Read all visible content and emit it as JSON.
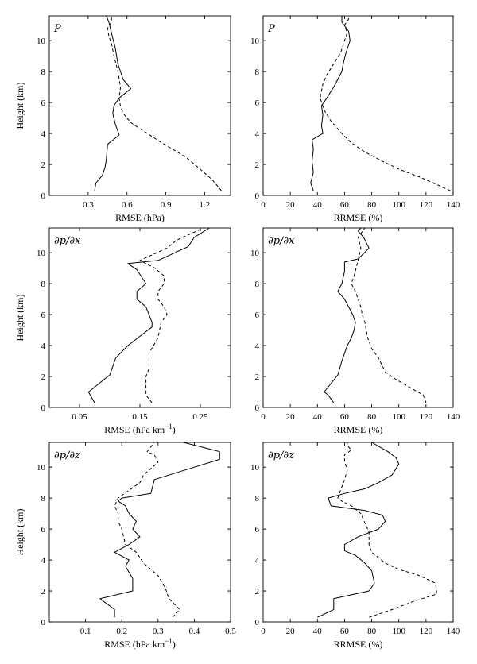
{
  "chart_data": [
    {
      "type": "line",
      "title": "P",
      "xlabel": "RMSE (hPa)",
      "ylabel": "Height (km)",
      "xlim": [
        0,
        1.4
      ],
      "ylim": [
        0,
        11.6
      ],
      "xticks": [
        0.3,
        0.6,
        0.9,
        1.2
      ],
      "xtick_labels": [
        "0.3",
        "0.6",
        "0.9",
        "1.2"
      ],
      "yticks": [
        0,
        2,
        4,
        6,
        8,
        10
      ],
      "ytick_labels": [
        "0",
        "2",
        "4",
        "6",
        "8",
        "10"
      ],
      "grid": false,
      "series": [
        {
          "style": "solid",
          "x": [
            0.35,
            0.36,
            0.41,
            0.43,
            0.44,
            0.45,
            0.54,
            0.51,
            0.49,
            0.5,
            0.54,
            0.6,
            0.63,
            0.57,
            0.53,
            0.51,
            0.48,
            0.46,
            0.44
          ],
          "y": [
            0.3,
            0.8,
            1.3,
            1.8,
            2.3,
            3.3,
            3.9,
            4.6,
            5.3,
            5.8,
            6.3,
            6.7,
            6.9,
            7.5,
            8.5,
            9.5,
            10.5,
            11.2,
            11.6
          ]
        },
        {
          "style": "dashed",
          "x": [
            1.33,
            1.26,
            1.15,
            1.05,
            0.95,
            0.85,
            0.72,
            0.63,
            0.58,
            0.55,
            0.54,
            0.55,
            0.53,
            0.5,
            0.48,
            0.46,
            0.45,
            0.48,
            0.48
          ],
          "y": [
            0.3,
            1.0,
            1.8,
            2.5,
            3.0,
            3.5,
            4.2,
            4.7,
            5.2,
            5.7,
            6.3,
            7.0,
            8.0,
            9.0,
            9.8,
            10.3,
            10.8,
            11.2,
            11.6
          ]
        }
      ]
    },
    {
      "type": "line",
      "title": "P",
      "xlabel": "RRMSE (%)",
      "ylabel": "",
      "xlim": [
        0,
        140
      ],
      "ylim": [
        0,
        11.6
      ],
      "xticks": [
        0,
        20,
        40,
        60,
        80,
        100,
        120,
        140
      ],
      "xtick_labels": [
        "0",
        "20",
        "40",
        "60",
        "80",
        "100",
        "120",
        "140"
      ],
      "yticks": [
        0,
        2,
        4,
        6,
        8,
        10
      ],
      "ytick_labels": [
        "0",
        "2",
        "4",
        "6",
        "8",
        "10"
      ],
      "grid": false,
      "series": [
        {
          "style": "solid",
          "x": [
            37,
            35,
            37,
            36,
            37,
            36,
            44,
            43,
            44,
            43,
            47,
            52,
            55,
            58,
            59,
            61,
            64,
            63,
            58,
            58
          ],
          "y": [
            0.3,
            0.8,
            1.5,
            2.2,
            3.0,
            3.6,
            4.0,
            4.5,
            5.2,
            5.8,
            6.3,
            7.0,
            7.5,
            8.0,
            8.5,
            9.2,
            10.0,
            10.6,
            11.2,
            11.6
          ]
        },
        {
          "style": "dashed",
          "x": [
            138,
            128,
            115,
            100,
            88,
            75,
            65,
            58,
            50,
            45,
            42,
            44,
            47,
            52,
            57,
            60,
            62,
            60,
            63,
            62
          ],
          "y": [
            0.3,
            0.7,
            1.2,
            1.7,
            2.2,
            2.8,
            3.4,
            4.0,
            4.8,
            5.5,
            6.3,
            7.2,
            7.8,
            8.5,
            9.2,
            10.0,
            10.5,
            11.0,
            11.4,
            11.6
          ]
        }
      ]
    },
    {
      "type": "line",
      "title": "∂p/∂x",
      "xlabel": "RMSE (hPa km",
      "xlabel_sup": "−1",
      "xlabel_end": ")",
      "ylabel": "Height (km)",
      "xlim": [
        0,
        0.3
      ],
      "ylim": [
        0,
        11.6
      ],
      "xticks": [
        0.05,
        0.15,
        0.25
      ],
      "xtick_labels": [
        "0.05",
        "0.15",
        "0.25"
      ],
      "yticks": [
        0,
        2,
        4,
        6,
        8,
        10
      ],
      "ytick_labels": [
        "0",
        "2",
        "4",
        "6",
        "8",
        "10"
      ],
      "grid": false,
      "series": [
        {
          "style": "solid",
          "x": [
            0.075,
            0.065,
            0.1,
            0.11,
            0.13,
            0.15,
            0.17,
            0.17,
            0.16,
            0.145,
            0.145,
            0.16,
            0.145,
            0.13,
            0.18,
            0.23,
            0.24,
            0.265
          ],
          "y": [
            0.3,
            1.0,
            2.1,
            3.2,
            4.0,
            4.6,
            5.2,
            5.5,
            6.5,
            7.0,
            7.5,
            8.0,
            8.9,
            9.3,
            9.5,
            10.4,
            11.0,
            11.6
          ]
        },
        {
          "style": "dashed",
          "x": [
            0.17,
            0.16,
            0.16,
            0.165,
            0.165,
            0.18,
            0.185,
            0.195,
            0.19,
            0.18,
            0.18,
            0.19,
            0.19,
            0.175,
            0.15,
            0.195,
            0.21,
            0.255
          ],
          "y": [
            0.3,
            0.8,
            2.0,
            2.5,
            3.5,
            4.5,
            5.5,
            6.0,
            6.5,
            7.0,
            7.5,
            8.0,
            8.5,
            9.0,
            9.5,
            10.3,
            10.8,
            11.6
          ]
        }
      ]
    },
    {
      "type": "line",
      "title": "∂p/∂x",
      "xlabel": "RRMSE (%)",
      "ylabel": "",
      "xlim": [
        0,
        140
      ],
      "ylim": [
        0,
        11.6
      ],
      "xticks": [
        0,
        20,
        40,
        60,
        80,
        100,
        120,
        140
      ],
      "xtick_labels": [
        "0",
        "20",
        "40",
        "60",
        "80",
        "100",
        "120",
        "140"
      ],
      "yticks": [
        0,
        2,
        4,
        6,
        8,
        10
      ],
      "ytick_labels": [
        "0",
        "2",
        "4",
        "6",
        "8",
        "10"
      ],
      "grid": false,
      "series": [
        {
          "style": "solid",
          "x": [
            52,
            48,
            45,
            55,
            58,
            62,
            65,
            67,
            68,
            66,
            60,
            55,
            58,
            60,
            60,
            70,
            78,
            74,
            70,
            72
          ],
          "y": [
            0.3,
            0.8,
            1.0,
            2.1,
            3.0,
            4.0,
            4.5,
            5.0,
            5.5,
            6.0,
            7.0,
            7.5,
            8.0,
            8.8,
            9.4,
            9.6,
            10.3,
            11.0,
            11.4,
            11.6
          ]
        },
        {
          "style": "dashed",
          "x": [
            120,
            118,
            108,
            98,
            90,
            85,
            80,
            77,
            76,
            75,
            73,
            72,
            70,
            68,
            65,
            67,
            70,
            72,
            70,
            75
          ],
          "y": [
            0.3,
            0.8,
            1.3,
            1.8,
            2.3,
            3.2,
            3.8,
            4.5,
            5.0,
            5.5,
            6.0,
            6.5,
            7.0,
            7.5,
            8.0,
            8.5,
            9.5,
            10.3,
            11.0,
            11.6
          ]
        }
      ]
    },
    {
      "type": "line",
      "title": "∂p/∂z",
      "xlabel": "RMSE (hPa km",
      "xlabel_sup": "−1",
      "xlabel_end": ")",
      "ylabel": "Height (km)",
      "xlim": [
        0,
        0.5
      ],
      "ylim": [
        0,
        11.6
      ],
      "xticks": [
        0.1,
        0.2,
        0.3,
        0.4,
        0.5
      ],
      "xtick_labels": [
        "0.1",
        "0.2",
        "0.3",
        "0.4",
        "0.5"
      ],
      "yticks": [
        0,
        2,
        4,
        6,
        8,
        10
      ],
      "ytick_labels": [
        "0",
        "2",
        "4",
        "6",
        "8",
        "10"
      ],
      "grid": false,
      "series": [
        {
          "style": "solid",
          "x": [
            0.18,
            0.18,
            0.14,
            0.23,
            0.23,
            0.21,
            0.22,
            0.18,
            0.22,
            0.25,
            0.23,
            0.24,
            0.22,
            0.21,
            0.19,
            0.2,
            0.28,
            0.29,
            0.4,
            0.47,
            0.47,
            0.42,
            0.37
          ],
          "y": [
            0.3,
            0.8,
            1.5,
            2.0,
            2.8,
            3.6,
            4.0,
            4.5,
            5.0,
            5.5,
            6.0,
            6.5,
            7.0,
            7.5,
            7.8,
            8.0,
            8.3,
            9.2,
            10.0,
            10.5,
            11.0,
            11.3,
            11.6
          ]
        },
        {
          "style": "dashed",
          "x": [
            0.34,
            0.36,
            0.33,
            0.32,
            0.3,
            0.26,
            0.24,
            0.21,
            0.2,
            0.19,
            0.19,
            0.18,
            0.19,
            0.22,
            0.25,
            0.26,
            0.3,
            0.29,
            0.27,
            0.29
          ],
          "y": [
            0.3,
            0.8,
            1.5,
            2.2,
            3.0,
            3.8,
            4.5,
            5.0,
            6.0,
            6.5,
            7.0,
            7.5,
            8.0,
            8.5,
            9.0,
            9.5,
            10.3,
            10.8,
            11.0,
            11.6
          ]
        }
      ]
    },
    {
      "type": "line",
      "title": "∂p/∂z",
      "xlabel": "RRMSE (%)",
      "ylabel": "",
      "xlim": [
        0,
        140
      ],
      "ylim": [
        0,
        11.6
      ],
      "xticks": [
        0,
        20,
        40,
        60,
        80,
        100,
        120,
        140
      ],
      "xtick_labels": [
        "0",
        "20",
        "40",
        "60",
        "80",
        "100",
        "120",
        "140"
      ],
      "yticks": [
        0,
        2,
        4,
        6,
        8,
        10
      ],
      "ytick_labels": [
        "0",
        "2",
        "4",
        "6",
        "8",
        "10"
      ],
      "grid": false,
      "series": [
        {
          "style": "solid",
          "x": [
            40,
            52,
            52,
            78,
            82,
            80,
            75,
            68,
            60,
            60,
            70,
            85,
            90,
            88,
            75,
            50,
            48,
            60,
            75,
            85,
            95,
            100,
            98,
            92,
            80
          ],
          "y": [
            0.3,
            0.8,
            1.5,
            2.0,
            2.5,
            3.3,
            3.8,
            4.3,
            4.6,
            5.0,
            5.5,
            6.0,
            6.5,
            6.9,
            7.2,
            7.5,
            8.0,
            8.3,
            8.6,
            9.0,
            9.5,
            10.2,
            10.6,
            11.0,
            11.6
          ]
        },
        {
          "style": "dashed",
          "x": [
            78,
            95,
            110,
            128,
            127,
            115,
            100,
            90,
            80,
            78,
            78,
            75,
            72,
            65,
            58,
            55,
            57,
            60,
            62,
            60,
            60,
            65,
            62,
            62
          ],
          "y": [
            0.3,
            0.8,
            1.3,
            1.8,
            2.5,
            3.0,
            3.4,
            3.8,
            4.5,
            5.0,
            5.8,
            6.4,
            7.0,
            7.5,
            7.8,
            8.0,
            8.5,
            9.2,
            9.8,
            10.4,
            10.8,
            11.1,
            11.4,
            11.6
          ]
        }
      ]
    }
  ]
}
